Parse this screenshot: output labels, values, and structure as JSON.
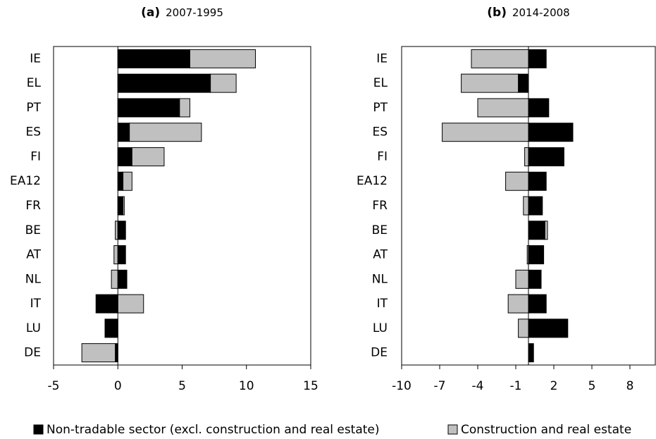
{
  "chart_data": [
    {
      "type": "bar",
      "orientation": "horizontal",
      "stacked": true,
      "label": "(a)",
      "title": "2007-1995",
      "categories": [
        "IE",
        "EL",
        "PT",
        "ES",
        "FI",
        "EA12",
        "FR",
        "BE",
        "AT",
        "NL",
        "IT",
        "LU",
        "DE"
      ],
      "series": [
        {
          "name": "Non-tradable sector (excl. construction and real estate)",
          "color": "#000000",
          "values": [
            5.6,
            7.2,
            4.8,
            0.9,
            1.1,
            0.4,
            0.4,
            0.6,
            0.6,
            0.7,
            -1.7,
            -1.0,
            -0.2
          ]
        },
        {
          "name": "Construction and real estate",
          "color": "#c0c0c0",
          "values": [
            5.1,
            2.0,
            0.8,
            5.6,
            2.5,
            0.7,
            0.1,
            -0.2,
            -0.3,
            -0.5,
            2.0,
            0,
            -2.6
          ]
        }
      ],
      "xlim": [
        -5,
        15
      ],
      "xticks": [
        -5,
        0,
        5,
        10,
        15
      ]
    },
    {
      "type": "bar",
      "orientation": "horizontal",
      "stacked": true,
      "label": "(b)",
      "title": "2014-2008",
      "categories": [
        "IE",
        "EL",
        "PT",
        "ES",
        "FI",
        "EA12",
        "FR",
        "BE",
        "AT",
        "NL",
        "IT",
        "LU",
        "DE"
      ],
      "series": [
        {
          "color": "#000000",
          "values": [
            1.4,
            -0.8,
            1.6,
            3.5,
            2.8,
            1.4,
            1.1,
            1.3,
            1.2,
            1.0,
            1.4,
            3.1,
            0.4
          ]
        },
        {
          "color": "#c0c0c0",
          "values": [
            -4.5,
            -4.5,
            -4.0,
            -6.8,
            -0.3,
            -1.8,
            -0.4,
            0.2,
            -0.1,
            -1.0,
            -1.6,
            -0.8,
            0
          ]
        }
      ],
      "xlim": [
        -10,
        10
      ],
      "xticks": [
        -10,
        -7,
        -4,
        -1,
        2,
        5,
        8
      ]
    }
  ]
}
